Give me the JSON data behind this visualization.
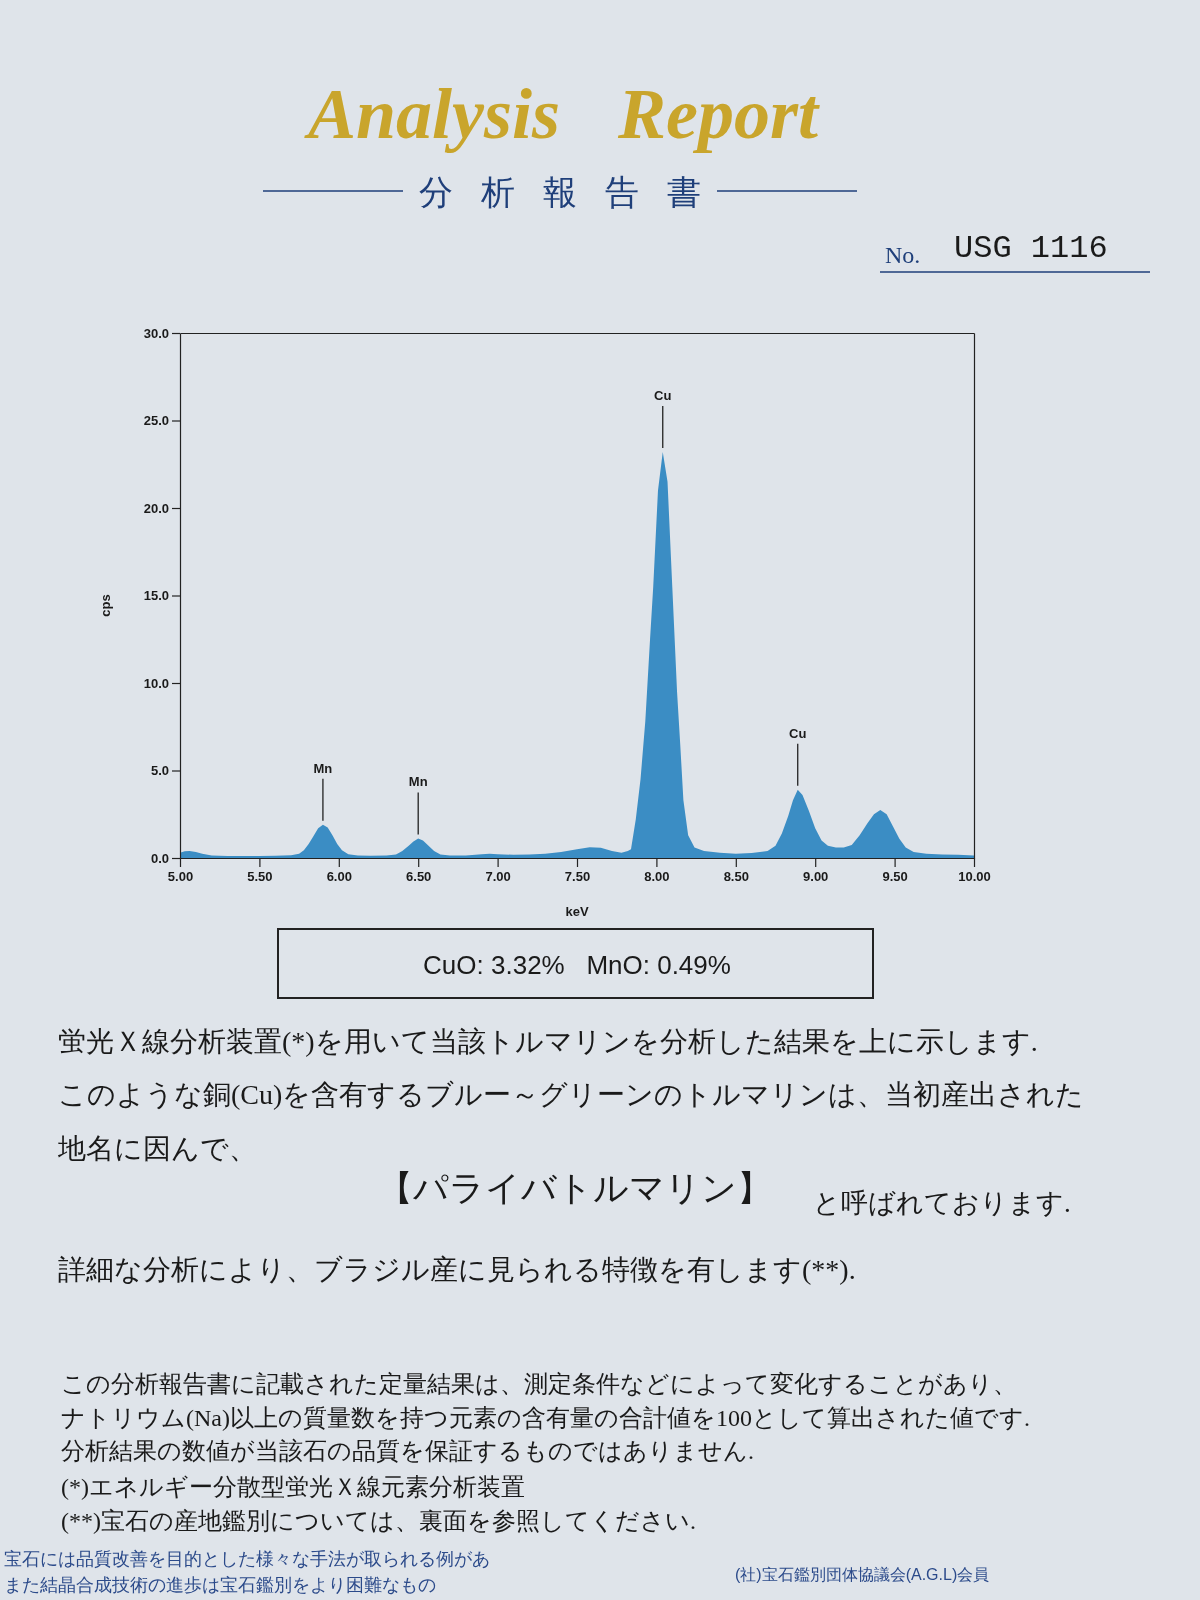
{
  "chart_data": {
    "type": "area",
    "title": "Analysis Report",
    "subtitle": "分析報告書",
    "xlabel": "keV",
    "ylabel": "cps",
    "color": "#3b8dc4",
    "x": [
      5.0,
      5.03,
      5.06,
      5.1,
      5.14,
      5.2,
      5.3,
      5.4,
      5.5,
      5.6,
      5.7,
      5.75,
      5.78,
      5.81,
      5.84,
      5.87,
      5.9,
      5.93,
      5.96,
      5.99,
      6.02,
      6.06,
      6.12,
      6.2,
      6.3,
      6.36,
      6.4,
      6.44,
      6.47,
      6.5,
      6.53,
      6.56,
      6.6,
      6.64,
      6.7,
      6.8,
      6.9,
      6.95,
      7.0,
      7.1,
      7.2,
      7.3,
      7.4,
      7.5,
      7.58,
      7.65,
      7.72,
      7.78,
      7.82,
      7.84,
      7.87,
      7.9,
      7.93,
      7.96,
      7.98,
      8.01,
      8.04,
      8.07,
      8.1,
      8.13,
      8.15,
      8.17,
      8.2,
      8.24,
      8.3,
      8.4,
      8.5,
      8.6,
      8.7,
      8.75,
      8.79,
      8.83,
      8.86,
      8.89,
      8.92,
      8.96,
      9.0,
      9.04,
      9.08,
      9.13,
      9.18,
      9.23,
      9.28,
      9.33,
      9.37,
      9.41,
      9.45,
      9.49,
      9.53,
      9.57,
      9.62,
      9.7,
      9.8,
      9.9,
      10.0
    ],
    "values": [
      0.3,
      0.38,
      0.4,
      0.35,
      0.25,
      0.15,
      0.12,
      0.12,
      0.12,
      0.13,
      0.16,
      0.25,
      0.45,
      0.8,
      1.25,
      1.7,
      1.9,
      1.75,
      1.3,
      0.8,
      0.45,
      0.22,
      0.15,
      0.13,
      0.14,
      0.2,
      0.4,
      0.7,
      0.95,
      1.12,
      1.0,
      0.75,
      0.4,
      0.2,
      0.15,
      0.15,
      0.22,
      0.25,
      0.22,
      0.18,
      0.2,
      0.25,
      0.35,
      0.5,
      0.62,
      0.58,
      0.4,
      0.3,
      0.4,
      0.5,
      2.2,
      4.5,
      7.8,
      12.5,
      15.5,
      21,
      23.2,
      21.5,
      15.5,
      9.5,
      6.5,
      3.3,
      1.3,
      0.6,
      0.4,
      0.3,
      0.25,
      0.28,
      0.4,
      0.7,
      1.4,
      2.4,
      3.3,
      3.9,
      3.6,
      2.7,
      1.7,
      1.0,
      0.7,
      0.6,
      0.6,
      0.75,
      1.3,
      2.0,
      2.5,
      2.75,
      2.5,
      1.8,
      1.1,
      0.6,
      0.35,
      0.25,
      0.2,
      0.18,
      0.15
    ],
    "xlim": [
      5,
      10
    ],
    "ylim": [
      0,
      30
    ],
    "xticks": [
      {
        "value": 5,
        "label": "5.00"
      },
      {
        "value": 5.5,
        "label": "5.50"
      },
      {
        "value": 6,
        "label": "6.00"
      },
      {
        "value": 6.5,
        "label": "6.50"
      },
      {
        "value": 7,
        "label": "7.00"
      },
      {
        "value": 7.5,
        "label": "7.50"
      },
      {
        "value": 8,
        "label": "8.00"
      },
      {
        "value": 8.5,
        "label": "8.50"
      },
      {
        "value": 9,
        "label": "9.00"
      },
      {
        "value": 9.5,
        "label": "9.50"
      },
      {
        "value": 10,
        "label": "10.00"
      }
    ],
    "yticks": [
      {
        "value": 0,
        "label": "0.0"
      },
      {
        "value": 5,
        "label": "5.0"
      },
      {
        "value": 10,
        "label": "10.0"
      },
      {
        "value": 15,
        "label": "15.0"
      },
      {
        "value": 20,
        "label": "20.0"
      },
      {
        "value": 25,
        "label": "25.0"
      },
      {
        "value": 30,
        "label": "30.0"
      }
    ],
    "annotations": [
      "No.",
      "USG 1116",
      {
        "text": "Mn",
        "x": 5.9,
        "y": 1.9
      },
      {
        "text": "Mn",
        "x": 6.5,
        "y": 1.12
      },
      {
        "text": "Cu",
        "x": 8.04,
        "y": 23.2
      },
      {
        "text": "Cu",
        "x": 8.89,
        "y": 3.9
      },
      "CuO: 3.32%   MnO: 0.49%",
      "蛍光Ｘ線分析装置(*)を用いて当該トルマリンを分析した結果を上に示します.",
      "このような銅(Cu)を含有するブルー～グリーンのトルマリンは、当初産出された",
      "地名に因んで、",
      "【パライバトルマリン】",
      "と呼ばれております.",
      "詳細な分析により、ブラジル産に見られる特徴を有します(**).",
      "この分析報告書に記載された定量結果は、測定条件などによって変化することがあり、",
      "ナトリウム(Na)以上の質量数を持つ元素の含有量の合計値を100として算出された値です.",
      "分析結果の数値が当該石の品質を保証するものではありません.",
      "(*)エネルギー分散型蛍光Ｘ線元素分析装置",
      "(**)宝石の産地鑑別については、裏面を参照してください.",
      "宝石には品質改善を目的とした様々な手法が取られる例があ",
      "また結晶合成技術の進歩は宝石鑑別をより困難なもの",
      "(社)宝石鑑別団体協議会(A.G.L)会員"
    ]
  }
}
